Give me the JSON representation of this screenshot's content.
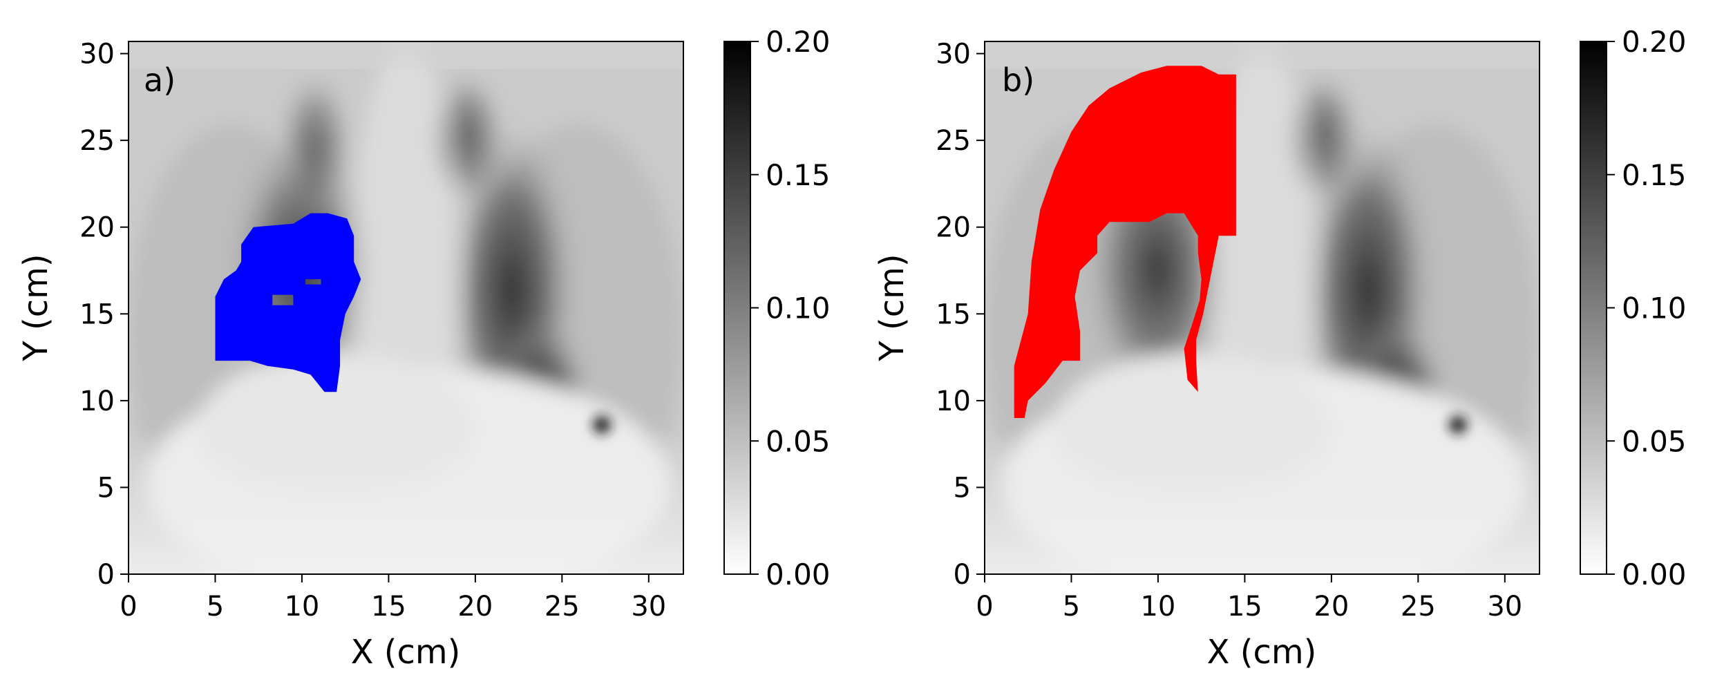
{
  "chart_data": [
    {
      "type": "heatmap",
      "panel_label": "a)",
      "title": "",
      "xlabel": "X (cm)",
      "ylabel": "Y (cm)",
      "xlim": [
        0,
        32
      ],
      "ylim": [
        0,
        30.7
      ],
      "x_ticks": [
        0,
        5,
        10,
        15,
        20,
        25,
        30
      ],
      "y_ticks": [
        0,
        5,
        10,
        15,
        20,
        25,
        30
      ],
      "colormap": "gray_r",
      "colorbar": {
        "range": [
          0.0,
          0.2
        ],
        "ticks": [
          "0.00",
          "0.05",
          "0.10",
          "0.15",
          "0.20"
        ]
      },
      "overlay": {
        "color": "#0000ff",
        "description": "segmented region",
        "outline": [
          [
            6.5,
            19
          ],
          [
            7.2,
            20
          ],
          [
            9.5,
            20.2
          ],
          [
            10.5,
            20.8
          ],
          [
            11.5,
            20.8
          ],
          [
            12.6,
            20.5
          ],
          [
            13,
            19.5
          ],
          [
            13,
            18
          ],
          [
            13.4,
            17
          ],
          [
            13,
            16
          ],
          [
            12.5,
            15
          ],
          [
            12.2,
            13.5
          ],
          [
            12.2,
            12
          ],
          [
            12,
            10.5
          ],
          [
            11.3,
            10.5
          ],
          [
            10.5,
            11.5
          ],
          [
            9.5,
            11.8
          ],
          [
            8,
            12
          ],
          [
            7,
            12.3
          ],
          [
            5,
            12.3
          ],
          [
            5,
            16
          ],
          [
            5.5,
            17
          ],
          [
            6.2,
            17.5
          ],
          [
            6.5,
            18
          ]
        ],
        "holes": [
          [
            [
              8.3,
              15.5
            ],
            [
              9.5,
              15.5
            ],
            [
              9.5,
              16.1
            ],
            [
              8.3,
              16.1
            ]
          ],
          [
            [
              10.2,
              16.7
            ],
            [
              11.1,
              16.7
            ],
            [
              11.1,
              17
            ],
            [
              10.2,
              17
            ]
          ]
        ]
      }
    },
    {
      "type": "heatmap",
      "panel_label": "b)",
      "title": "",
      "xlabel": "X (cm)",
      "ylabel": "Y (cm)",
      "xlim": [
        0,
        32
      ],
      "ylim": [
        0,
        30.7
      ],
      "x_ticks": [
        0,
        5,
        10,
        15,
        20,
        25,
        30
      ],
      "y_ticks": [
        0,
        5,
        10,
        15,
        20,
        25,
        30
      ],
      "colormap": "gray_r",
      "colorbar": {
        "range": [
          0.0,
          0.2
        ],
        "ticks": [
          "0.00",
          "0.05",
          "0.10",
          "0.15",
          "0.20"
        ]
      },
      "overlay": {
        "color": "#ff0000",
        "description": "segmented region",
        "outline": [
          [
            1.7,
            9
          ],
          [
            1.7,
            12
          ],
          [
            2.5,
            15
          ],
          [
            2.7,
            18
          ],
          [
            3.2,
            21
          ],
          [
            4,
            23.3
          ],
          [
            5,
            25.5
          ],
          [
            6,
            27
          ],
          [
            7.2,
            28
          ],
          [
            9,
            28.9
          ],
          [
            10.5,
            29.3
          ],
          [
            12.5,
            29.3
          ],
          [
            13.5,
            28.8
          ],
          [
            14.5,
            28.8
          ],
          [
            14.5,
            19.5
          ],
          [
            13.5,
            19.5
          ],
          [
            13,
            17
          ],
          [
            12.6,
            15
          ],
          [
            12.2,
            13.5
          ],
          [
            12.2,
            12.3
          ],
          [
            12.3,
            10.5
          ],
          [
            11.7,
            11.2
          ],
          [
            11.5,
            13
          ],
          [
            12,
            14.5
          ],
          [
            12.4,
            15.8
          ],
          [
            12.5,
            17
          ],
          [
            12.3,
            18.5
          ],
          [
            12.3,
            19.5
          ],
          [
            11.5,
            20.8
          ],
          [
            10.5,
            20.8
          ],
          [
            9.5,
            20.3
          ],
          [
            7.2,
            20.3
          ],
          [
            6.5,
            19.5
          ],
          [
            6.5,
            18.5
          ],
          [
            5.5,
            17.5
          ],
          [
            5.2,
            16
          ],
          [
            5.5,
            14
          ],
          [
            5.5,
            12.3
          ],
          [
            4.5,
            12.3
          ],
          [
            3.5,
            11
          ],
          [
            2.5,
            10
          ],
          [
            2.3,
            9
          ]
        ]
      }
    }
  ]
}
